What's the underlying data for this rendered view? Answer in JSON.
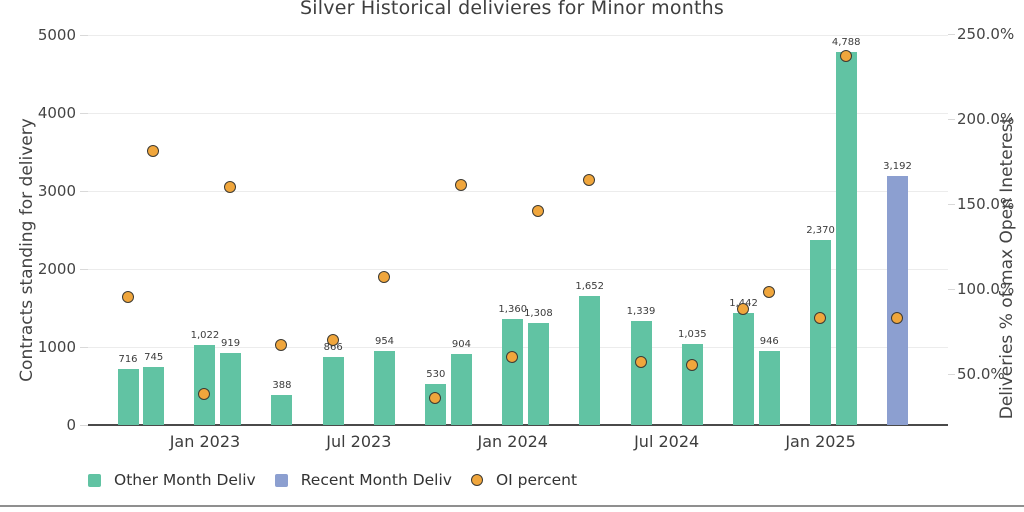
{
  "title": "Silver Historical delivieres for Minor months",
  "left_axis": {
    "label": "Contracts standing for delivery",
    "ticks": [
      {
        "label": "5000",
        "value": 5000
      },
      {
        "label": "4000",
        "value": 4000
      },
      {
        "label": "3000",
        "value": 3000
      },
      {
        "label": "2000",
        "value": 2000
      },
      {
        "label": "1000",
        "value": 1000
      },
      {
        "label": "0",
        "value": 0
      }
    ]
  },
  "right_axis": {
    "label": "Deliveries % of max Open Ineterest",
    "ticks": [
      {
        "label": "250.0%",
        "value": 250
      },
      {
        "label": "200.0%",
        "value": 200
      },
      {
        "label": "150.0%",
        "value": 150
      },
      {
        "label": "100.0%",
        "value": 100
      },
      {
        "label": "50.0%",
        "value": 50
      }
    ]
  },
  "x_axis": {
    "ticks": [
      {
        "label": "Jan 2023",
        "slot": 3
      },
      {
        "label": "Jul 2023",
        "slot": 9
      },
      {
        "label": "Jan 2024",
        "slot": 15
      },
      {
        "label": "Jul 2024",
        "slot": 21
      },
      {
        "label": "Jan 2025",
        "slot": 27
      }
    ]
  },
  "legend": [
    {
      "label": "Other Month Deliv",
      "color": "#61c3a3",
      "shape": "square"
    },
    {
      "label": "Recent Month Deliv",
      "color": "#8c9fd0",
      "shape": "square"
    },
    {
      "label": "OI percent",
      "color": "#f0a63c",
      "shape": "circle"
    }
  ],
  "chart_data": {
    "type": "bar",
    "overlay_type": "scatter",
    "title": "Silver Historical delivieres for Minor months",
    "left_ylabel": "Contracts standing for delivery",
    "right_ylabel": "Deliveries % of max Open Ineterest",
    "ylim_left": [
      0,
      5000
    ],
    "right_axis_ticks_pct": [
      50,
      100,
      150,
      200,
      250
    ],
    "grid": true,
    "legend_position": "bottom-left",
    "bar_series_colors": {
      "Other Month Deliv": "#61c3a3",
      "Recent Month Deliv": "#8c9fd0"
    },
    "scatter_series": {
      "name": "OI percent",
      "color": "#f0a63c"
    },
    "points": [
      {
        "month": "Oct 2022",
        "slot": 0,
        "contracts": 716,
        "bar_label": "716",
        "oi_percent": 95,
        "series": "Other Month Deliv"
      },
      {
        "month": "Nov 2022",
        "slot": 1,
        "contracts": 745,
        "bar_label": "745",
        "oi_percent": 181,
        "series": "Other Month Deliv"
      },
      {
        "month": "Jan 2023",
        "slot": 3,
        "contracts": 1022,
        "bar_label": "1,022",
        "oi_percent": 38,
        "series": "Other Month Deliv"
      },
      {
        "month": "Feb 2023",
        "slot": 4,
        "contracts": 919,
        "bar_label": "919",
        "oi_percent": 160,
        "series": "Other Month Deliv"
      },
      {
        "month": "Apr 2023",
        "slot": 6,
        "contracts": 388,
        "bar_label": "388",
        "oi_percent": 67,
        "series": "Other Month Deliv"
      },
      {
        "month": "Jun 2023",
        "slot": 8,
        "contracts": 866,
        "bar_label": "866",
        "oi_percent": 70,
        "series": "Other Month Deliv"
      },
      {
        "month": "Aug 2023",
        "slot": 10,
        "contracts": 954,
        "bar_label": "954",
        "oi_percent": 107,
        "series": "Other Month Deliv"
      },
      {
        "month": "Oct 2023",
        "slot": 12,
        "contracts": 530,
        "bar_label": "530",
        "oi_percent": 36,
        "series": "Other Month Deliv"
      },
      {
        "month": "Nov 2023",
        "slot": 13,
        "contracts": 904,
        "bar_label": "904",
        "oi_percent": 161,
        "series": "Other Month Deliv"
      },
      {
        "month": "Jan 2024",
        "slot": 15,
        "contracts": 1360,
        "bar_label": "1,360",
        "oi_percent": 60,
        "series": "Other Month Deliv"
      },
      {
        "month": "Feb 2024",
        "slot": 16,
        "contracts": 1308,
        "bar_label": "1,308",
        "oi_percent": 146,
        "series": "Other Month Deliv"
      },
      {
        "month": "Apr 2024",
        "slot": 18,
        "contracts": 1652,
        "bar_label": "1,652",
        "oi_percent": 164,
        "series": "Other Month Deliv"
      },
      {
        "month": "Jun 2024",
        "slot": 20,
        "contracts": 1339,
        "bar_label": "1,339",
        "oi_percent": 57,
        "series": "Other Month Deliv"
      },
      {
        "month": "Aug 2024",
        "slot": 22,
        "contracts": 1035,
        "bar_label": "1,035",
        "oi_percent": 55,
        "series": "Other Month Deliv"
      },
      {
        "month": "Oct 2024",
        "slot": 24,
        "contracts": 1442,
        "bar_label": "1,442",
        "oi_percent": 88,
        "series": "Other Month Deliv"
      },
      {
        "month": "Nov 2024",
        "slot": 25,
        "contracts": 946,
        "bar_label": "946",
        "oi_percent": 98,
        "series": "Other Month Deliv"
      },
      {
        "month": "Jan 2025",
        "slot": 27,
        "contracts": 2370,
        "bar_label": "2,370",
        "oi_percent": 83,
        "series": "Other Month Deliv"
      },
      {
        "month": "Feb 2025",
        "slot": 28,
        "contracts": 4788,
        "bar_label": "4,788",
        "oi_percent": 237,
        "series": "Other Month Deliv"
      },
      {
        "month": "Apr 2025",
        "slot": 30,
        "contracts": 3192,
        "bar_label": "3,192",
        "oi_percent": 83,
        "series": "Recent Month Deliv"
      }
    ]
  }
}
